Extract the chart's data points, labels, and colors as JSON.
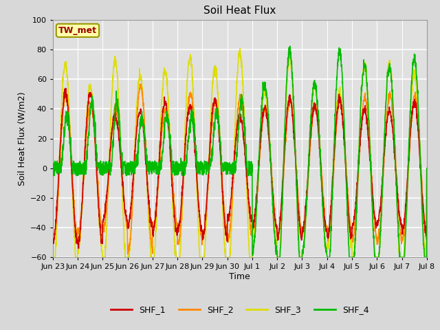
{
  "title": "Soil Heat Flux",
  "xlabel": "Time",
  "ylabel": "Soil Heat Flux (W/m2)",
  "ylim": [
    -60,
    100
  ],
  "yticks": [
    -60,
    -40,
    -20,
    0,
    20,
    40,
    60,
    80,
    100
  ],
  "colors": {
    "SHF_1": "#cc0000",
    "SHF_2": "#ff8800",
    "SHF_3": "#dddd00",
    "SHF_4": "#00bb00"
  },
  "bg_color": "#d8d8d8",
  "plot_bg_color": "#e0e0e0",
  "annotation_text": "TW_met",
  "annotation_color": "#990000",
  "annotation_bg": "#ffffaa",
  "annotation_border": "#999900",
  "tick_labels": [
    "Jun 23",
    "Jun 24",
    "Jun 25",
    "Jun 26",
    "Jun 27",
    "Jun 28",
    "Jun 29",
    "Jun 30",
    "Jul 1",
    "Jul 2",
    "Jul 3",
    "Jul 4",
    "Jul 5",
    "Jul 6",
    "Jul 7",
    "Jul 8"
  ],
  "n_days": 15,
  "legend_entries": [
    "SHF_1",
    "SHF_2",
    "SHF_3",
    "SHF_4"
  ]
}
